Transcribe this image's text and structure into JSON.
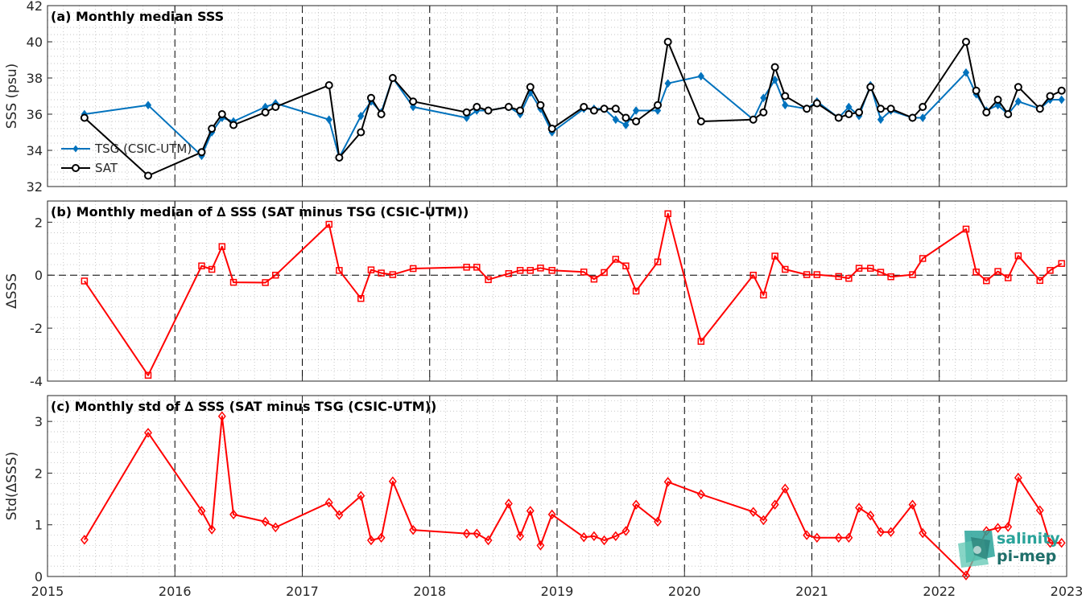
{
  "colors": {
    "tsg": "#0072BD",
    "sat": "#000000",
    "delta": "#FF0000",
    "grid": "#b4b4b4",
    "axis": "#262626",
    "logo_accent": "#2aa39a"
  },
  "logo": {
    "line1": "salinity",
    "line2": "pi-mep"
  },
  "chart_data": [
    {
      "type": "line",
      "title": "(a) Monthly median SSS",
      "xlabel": "",
      "ylabel": "SSS (psu)",
      "xlim": [
        2015,
        2023
      ],
      "ylim": [
        32,
        42
      ],
      "yticks": [
        32,
        34,
        36,
        38,
        40,
        42
      ],
      "xticks": [
        2015,
        2016,
        2017,
        2018,
        2019,
        2020,
        2021,
        2022,
        2023
      ],
      "show_xticklabels": false,
      "grid": true,
      "legend": "bottom-left",
      "series": [
        {
          "name": "TSG (CSIC-UTM)",
          "color_key": "tsg",
          "marker": "filled-diamond",
          "points": [
            [
              2015.29,
              36.0
            ],
            [
              2015.79,
              36.5
            ],
            [
              2016.21,
              33.7
            ],
            [
              2016.29,
              35.0
            ],
            [
              2016.37,
              35.8
            ],
            [
              2016.46,
              35.6
            ],
            [
              2016.71,
              36.4
            ],
            [
              2016.79,
              36.6
            ],
            [
              2017.21,
              35.7
            ],
            [
              2017.29,
              33.6
            ],
            [
              2017.46,
              35.9
            ],
            [
              2017.54,
              36.7
            ],
            [
              2017.62,
              36.1
            ],
            [
              2017.71,
              38.0
            ],
            [
              2017.87,
              36.4
            ],
            [
              2018.29,
              35.8
            ],
            [
              2018.37,
              36.2
            ],
            [
              2018.46,
              36.2
            ],
            [
              2018.62,
              36.4
            ],
            [
              2018.71,
              36.0
            ],
            [
              2018.79,
              37.2
            ],
            [
              2018.87,
              36.3
            ],
            [
              2018.96,
              35.0
            ],
            [
              2019.21,
              36.3
            ],
            [
              2019.29,
              36.3
            ],
            [
              2019.37,
              36.3
            ],
            [
              2019.46,
              35.7
            ],
            [
              2019.54,
              35.4
            ],
            [
              2019.62,
              36.2
            ],
            [
              2019.79,
              36.2
            ],
            [
              2019.87,
              37.7
            ],
            [
              2020.13,
              38.1
            ],
            [
              2020.54,
              35.7
            ],
            [
              2020.62,
              36.9
            ],
            [
              2020.71,
              37.9
            ],
            [
              2020.79,
              36.5
            ],
            [
              2020.96,
              36.3
            ],
            [
              2021.04,
              36.7
            ],
            [
              2021.21,
              35.8
            ],
            [
              2021.29,
              36.4
            ],
            [
              2021.37,
              35.9
            ],
            [
              2021.46,
              37.6
            ],
            [
              2021.54,
              35.7
            ],
            [
              2021.62,
              36.2
            ],
            [
              2021.79,
              35.8
            ],
            [
              2021.87,
              35.8
            ],
            [
              2022.21,
              38.3
            ],
            [
              2022.29,
              37.1
            ],
            [
              2022.37,
              36.2
            ],
            [
              2022.46,
              36.5
            ],
            [
              2022.54,
              36.0
            ],
            [
              2022.62,
              36.7
            ],
            [
              2022.79,
              36.3
            ],
            [
              2022.87,
              36.8
            ],
            [
              2022.96,
              36.8
            ]
          ]
        },
        {
          "name": "SAT",
          "color_key": "sat",
          "marker": "open-circle",
          "points": [
            [
              2015.29,
              35.8
            ],
            [
              2015.79,
              32.6
            ],
            [
              2016.21,
              33.9
            ],
            [
              2016.29,
              35.2
            ],
            [
              2016.37,
              36.0
            ],
            [
              2016.46,
              35.4
            ],
            [
              2016.71,
              36.1
            ],
            [
              2016.79,
              36.4
            ],
            [
              2017.21,
              37.6
            ],
            [
              2017.29,
              33.6
            ],
            [
              2017.46,
              35.0
            ],
            [
              2017.54,
              36.9
            ],
            [
              2017.62,
              36.0
            ],
            [
              2017.71,
              38.0
            ],
            [
              2017.87,
              36.7
            ],
            [
              2018.29,
              36.1
            ],
            [
              2018.37,
              36.4
            ],
            [
              2018.46,
              36.2
            ],
            [
              2018.62,
              36.4
            ],
            [
              2018.71,
              36.2
            ],
            [
              2018.79,
              37.5
            ],
            [
              2018.87,
              36.5
            ],
            [
              2018.96,
              35.2
            ],
            [
              2019.21,
              36.4
            ],
            [
              2019.29,
              36.2
            ],
            [
              2019.37,
              36.3
            ],
            [
              2019.46,
              36.3
            ],
            [
              2019.54,
              35.8
            ],
            [
              2019.62,
              35.6
            ],
            [
              2019.79,
              36.5
            ],
            [
              2019.87,
              40.0
            ],
            [
              2020.13,
              35.6
            ],
            [
              2020.54,
              35.7
            ],
            [
              2020.62,
              36.1
            ],
            [
              2020.71,
              38.6
            ],
            [
              2020.79,
              37.0
            ],
            [
              2020.96,
              36.3
            ],
            [
              2021.04,
              36.6
            ],
            [
              2021.21,
              35.8
            ],
            [
              2021.29,
              36.0
            ],
            [
              2021.37,
              36.1
            ],
            [
              2021.46,
              37.5
            ],
            [
              2021.54,
              36.3
            ],
            [
              2021.62,
              36.3
            ],
            [
              2021.79,
              35.8
            ],
            [
              2021.87,
              36.4
            ],
            [
              2022.21,
              40.0
            ],
            [
              2022.29,
              37.3
            ],
            [
              2022.37,
              36.1
            ],
            [
              2022.46,
              36.8
            ],
            [
              2022.54,
              36.0
            ],
            [
              2022.62,
              37.5
            ],
            [
              2022.79,
              36.3
            ],
            [
              2022.87,
              37.0
            ],
            [
              2022.96,
              37.3
            ]
          ]
        }
      ]
    },
    {
      "type": "line",
      "title": "(b) Monthly median of ∆ SSS (SAT minus TSG (CSIC-UTM))",
      "xlabel": "",
      "ylabel": "ΔSSS",
      "xlim": [
        2015,
        2023
      ],
      "ylim": [
        -4,
        2.8
      ],
      "yticks": [
        -4,
        -2,
        0,
        2
      ],
      "xticks": [
        2015,
        2016,
        2017,
        2018,
        2019,
        2020,
        2021,
        2022,
        2023
      ],
      "show_xticklabels": false,
      "grid": true,
      "zero_line": true,
      "series": [
        {
          "color_key": "delta",
          "marker": "open-square",
          "points": [
            [
              2015.29,
              -0.22
            ],
            [
              2015.79,
              -3.78
            ],
            [
              2016.21,
              0.35
            ],
            [
              2016.29,
              0.22
            ],
            [
              2016.37,
              1.08
            ],
            [
              2016.46,
              -0.27
            ],
            [
              2016.71,
              -0.28
            ],
            [
              2016.79,
              0.0
            ],
            [
              2017.21,
              1.92
            ],
            [
              2017.29,
              0.18
            ],
            [
              2017.46,
              -0.88
            ],
            [
              2017.54,
              0.2
            ],
            [
              2017.62,
              0.08
            ],
            [
              2017.71,
              0.02
            ],
            [
              2017.87,
              0.25
            ],
            [
              2018.29,
              0.3
            ],
            [
              2018.37,
              0.3
            ],
            [
              2018.46,
              -0.17
            ],
            [
              2018.62,
              0.06
            ],
            [
              2018.71,
              0.18
            ],
            [
              2018.79,
              0.18
            ],
            [
              2018.87,
              0.27
            ],
            [
              2018.96,
              0.18
            ],
            [
              2019.21,
              0.12
            ],
            [
              2019.29,
              -0.15
            ],
            [
              2019.37,
              0.1
            ],
            [
              2019.46,
              0.6
            ],
            [
              2019.54,
              0.35
            ],
            [
              2019.62,
              -0.6
            ],
            [
              2019.79,
              0.5
            ],
            [
              2019.87,
              2.32
            ],
            [
              2020.13,
              -2.5
            ],
            [
              2020.54,
              0.0
            ],
            [
              2020.62,
              -0.75
            ],
            [
              2020.71,
              0.72
            ],
            [
              2020.79,
              0.22
            ],
            [
              2020.96,
              0.02
            ],
            [
              2021.04,
              0.02
            ],
            [
              2021.21,
              -0.05
            ],
            [
              2021.29,
              -0.12
            ],
            [
              2021.37,
              0.26
            ],
            [
              2021.46,
              0.26
            ],
            [
              2021.54,
              0.11
            ],
            [
              2021.62,
              -0.06
            ],
            [
              2021.79,
              0.02
            ],
            [
              2021.87,
              0.63
            ],
            [
              2022.21,
              1.74
            ],
            [
              2022.29,
              0.12
            ],
            [
              2022.37,
              -0.21
            ],
            [
              2022.46,
              0.14
            ],
            [
              2022.54,
              -0.1
            ],
            [
              2022.62,
              0.73
            ],
            [
              2022.79,
              -0.2
            ],
            [
              2022.87,
              0.18
            ],
            [
              2022.96,
              0.44
            ]
          ]
        }
      ]
    },
    {
      "type": "line",
      "title": "(c) Monthly std of ∆ SSS (SAT minus TSG (CSIC-UTM))",
      "xlabel": "",
      "ylabel": "Std(ΔSSS)",
      "xlim": [
        2015,
        2023
      ],
      "ylim": [
        0,
        3.5
      ],
      "yticks": [
        0,
        1,
        2,
        3
      ],
      "xticks": [
        2015,
        2016,
        2017,
        2018,
        2019,
        2020,
        2021,
        2022,
        2023
      ],
      "show_xticklabels": true,
      "grid": true,
      "series": [
        {
          "color_key": "delta",
          "marker": "open-diamond",
          "points": [
            [
              2015.29,
              0.71
            ],
            [
              2015.79,
              2.78
            ],
            [
              2016.21,
              1.27
            ],
            [
              2016.29,
              0.91
            ],
            [
              2016.37,
              3.1
            ],
            [
              2016.46,
              1.2
            ],
            [
              2016.71,
              1.06
            ],
            [
              2016.79,
              0.95
            ],
            [
              2017.21,
              1.43
            ],
            [
              2017.29,
              1.19
            ],
            [
              2017.46,
              1.56
            ],
            [
              2017.54,
              0.7
            ],
            [
              2017.62,
              0.75
            ],
            [
              2017.71,
              1.84
            ],
            [
              2017.87,
              0.9
            ],
            [
              2018.29,
              0.83
            ],
            [
              2018.37,
              0.83
            ],
            [
              2018.46,
              0.7
            ],
            [
              2018.62,
              1.41
            ],
            [
              2018.71,
              0.78
            ],
            [
              2018.79,
              1.27
            ],
            [
              2018.87,
              0.6
            ],
            [
              2018.96,
              1.2
            ],
            [
              2019.21,
              0.76
            ],
            [
              2019.29,
              0.78
            ],
            [
              2019.37,
              0.7
            ],
            [
              2019.46,
              0.78
            ],
            [
              2019.54,
              0.88
            ],
            [
              2019.62,
              1.39
            ],
            [
              2019.79,
              1.06
            ],
            [
              2019.87,
              1.83
            ],
            [
              2020.13,
              1.59
            ],
            [
              2020.54,
              1.25
            ],
            [
              2020.62,
              1.09
            ],
            [
              2020.71,
              1.39
            ],
            [
              2020.79,
              1.7
            ],
            [
              2020.96,
              0.8
            ],
            [
              2021.04,
              0.75
            ],
            [
              2021.21,
              0.75
            ],
            [
              2021.29,
              0.75
            ],
            [
              2021.37,
              1.33
            ],
            [
              2021.46,
              1.18
            ],
            [
              2021.54,
              0.86
            ],
            [
              2021.62,
              0.86
            ],
            [
              2021.79,
              1.39
            ],
            [
              2021.87,
              0.84
            ],
            [
              2022.21,
              0.02
            ],
            [
              2022.37,
              0.88
            ],
            [
              2022.46,
              0.94
            ],
            [
              2022.54,
              0.96
            ],
            [
              2022.62,
              1.91
            ],
            [
              2022.79,
              1.28
            ],
            [
              2022.87,
              0.65
            ],
            [
              2022.96,
              0.65
            ]
          ]
        }
      ]
    }
  ]
}
